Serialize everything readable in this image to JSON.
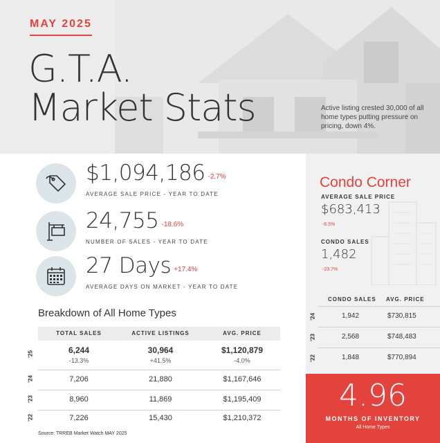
{
  "header": {
    "month": "MAY 2025",
    "title_line1": "G.T.A.",
    "title_line2": "Market Stats",
    "note": "Active listing crested 30,000 of all home types putting pressure on pricing, down 4%."
  },
  "kpis": [
    {
      "icon": "price-tag-icon",
      "value": "$1,094,186",
      "change": "-2.7%",
      "label": "AVERAGE SALE PRICE - YEAR TO DATE"
    },
    {
      "icon": "for-sale-sign-icon",
      "value": "24,755",
      "change": "-18.6%",
      "label": "NUMBER OF SALES - YEAR TO DATE"
    },
    {
      "icon": "calendar-icon",
      "value": "27 Days",
      "change": "+17.4%",
      "label": "AVERAGE DAYS ON MARKET - YEAR TO DATE"
    }
  ],
  "breakdown": {
    "title": "Breakdown of All Home Types",
    "columns": [
      "TOTAL SALES",
      "ACTIVE LISTINGS",
      "AVG. PRICE"
    ],
    "rows": [
      {
        "year": "'25",
        "sales": "6,244",
        "listings": "30,964",
        "price": "$1,120,879",
        "sales_chg": "-13.3%",
        "listings_chg": "+41.5%",
        "price_chg": "-4.0%"
      },
      {
        "year": "'24",
        "sales": "7,206",
        "listings": "21,880",
        "price": "$1,167,646"
      },
      {
        "year": "'23",
        "sales": "8,960",
        "listings": "11,869",
        "price": "$1,195,409"
      },
      {
        "year": "'22",
        "sales": "7,226",
        "listings": "15,430",
        "price": "$1,210,372"
      }
    ],
    "source": "Source: TRREB Market Watch MAY 2025"
  },
  "condo": {
    "title": "Condo Corner",
    "avg_label": "AVERAGE SALE PRICE",
    "avg_value": "$683,413",
    "avg_change": "-6.5%",
    "sales_label": "CONDO SALES",
    "sales_value": "1,482",
    "sales_change": "-23.7%",
    "columns": [
      "CONDO SALES",
      "AVG. PRICE"
    ],
    "rows": [
      {
        "year": "'24",
        "sales": "1,942",
        "price": "$730,815"
      },
      {
        "year": "'23",
        "sales": "2,568",
        "price": "$748,483"
      },
      {
        "year": "'22",
        "sales": "1,848",
        "price": "$770,894"
      }
    ]
  },
  "inventory": {
    "value": "4.96",
    "label": "MONTHS OF INVENTORY",
    "sub": "All Home Types"
  },
  "colors": {
    "accent": "#e4423c",
    "icon_bg": "#dbe5e9",
    "panel_bg": "#f1f1f1"
  }
}
